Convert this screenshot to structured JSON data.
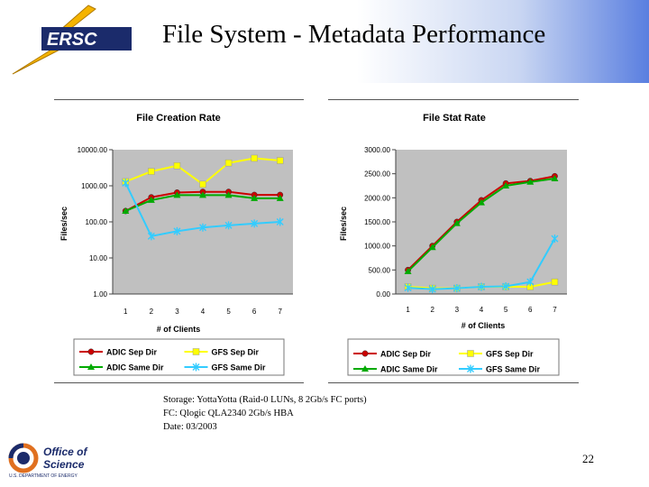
{
  "header": {
    "title": "File System - Metadata Performance",
    "logo_text": "ERSC"
  },
  "chart_data": [
    {
      "type": "line",
      "title": "File Creation Rate",
      "xlabel": "# of Clients",
      "ylabel": "Files/sec",
      "yscale": "log",
      "ylim": [
        1,
        10000
      ],
      "y_ticks": [
        "1.00",
        "10.00",
        "100.00",
        "1000.00",
        "10000.00"
      ],
      "x": [
        "1",
        "2",
        "3",
        "4",
        "5",
        "6",
        "7"
      ],
      "grid": false,
      "legend": "bottom",
      "series": [
        {
          "name": "ADIC Sep Dir",
          "color": "#cc0000",
          "marker": "circle",
          "values": [
            200,
            480,
            650,
            680,
            680,
            560,
            560
          ]
        },
        {
          "name": "GFS Sep Dir",
          "color": "#ffff00",
          "marker": "square",
          "values": [
            1300,
            2500,
            3600,
            1100,
            4300,
            5800,
            5000
          ]
        },
        {
          "name": "ADIC Same Dir",
          "color": "#00aa00",
          "marker": "triangle",
          "values": [
            200,
            400,
            550,
            550,
            550,
            450,
            450
          ]
        },
        {
          "name": "GFS Same Dir",
          "color": "#33ccff",
          "marker": "star",
          "values": [
            1200,
            40,
            55,
            70,
            80,
            90,
            100
          ]
        }
      ]
    },
    {
      "type": "line",
      "title": "File Stat Rate",
      "xlabel": "# of Clients",
      "ylabel": "Files/sec",
      "ylim": [
        0,
        3000
      ],
      "y_ticks": [
        "0.00",
        "500.00",
        "1000.00",
        "1500.00",
        "2000.00",
        "2500.00",
        "3000.00"
      ],
      "x": [
        "1",
        "2",
        "3",
        "4",
        "5",
        "6",
        "7"
      ],
      "grid": false,
      "legend": "bottom",
      "series": [
        {
          "name": "ADIC Sep Dir",
          "color": "#cc0000",
          "marker": "circle",
          "values": [
            500,
            1000,
            1500,
            1950,
            2300,
            2350,
            2450
          ]
        },
        {
          "name": "GFS Sep Dir",
          "color": "#ffff00",
          "marker": "square",
          "values": [
            150,
            120,
            120,
            150,
            150,
            150,
            250
          ]
        },
        {
          "name": "ADIC Same Dir",
          "color": "#00aa00",
          "marker": "triangle",
          "values": [
            470,
            970,
            1470,
            1900,
            2250,
            2330,
            2400
          ]
        },
        {
          "name": "GFS Same Dir",
          "color": "#33ccff",
          "marker": "star",
          "values": [
            130,
            100,
            120,
            150,
            160,
            250,
            1150
          ]
        }
      ]
    }
  ],
  "notes": [
    "Storage: YottaYotta (Raid-0 LUNs, 8 2Gb/s FC ports)",
    "FC: Qlogic QLA2340 2Gb/s HBA",
    "Date: 03/2003"
  ],
  "footer": {
    "office_logo_line1": "Office of",
    "office_logo_line2": "Science",
    "office_logo_line3": "U.S. DEPARTMENT OF ENERGY",
    "page_number": "22"
  }
}
